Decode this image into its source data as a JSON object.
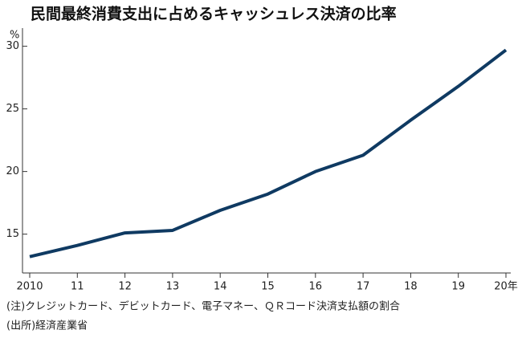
{
  "chart_data": {
    "type": "line",
    "title": "民間最終消費支出に占めるキャッシュレス決済の比率",
    "y_unit": "%",
    "categories": [
      "2010",
      "11",
      "12",
      "13",
      "14",
      "15",
      "16",
      "17",
      "18",
      "19",
      "20年"
    ],
    "values": [
      13.2,
      14.1,
      15.1,
      15.3,
      16.9,
      18.2,
      20.0,
      21.3,
      24.1,
      26.8,
      29.7
    ],
    "color": "#0f3a62",
    "ylim": [
      11.9,
      31.45
    ],
    "yticks": [
      15,
      20,
      25,
      30
    ],
    "grid": false,
    "notes": [
      "(注)クレジットカード、デビットカード、電子マネー、ＱＲコード決済支払額の割合",
      "(出所)経済産業省"
    ]
  }
}
